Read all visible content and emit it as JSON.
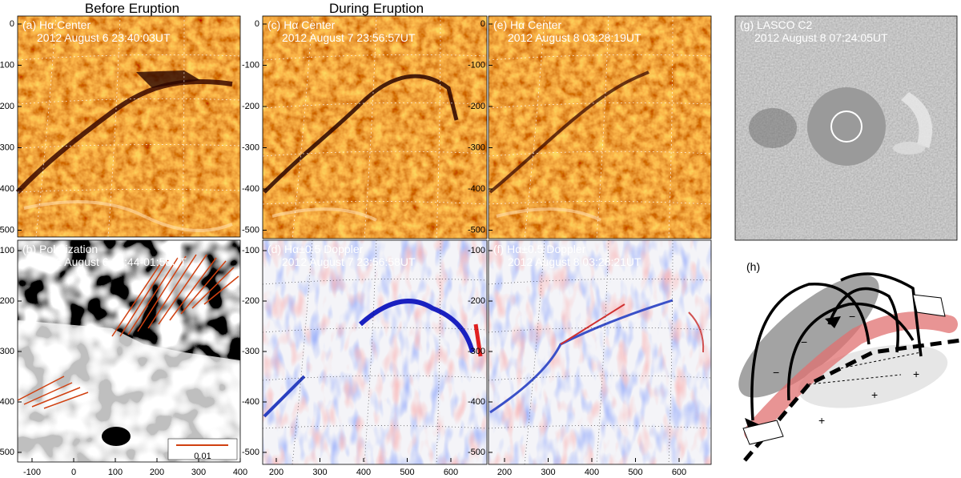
{
  "headers": [
    "Before Eruption",
    "During Eruption"
  ],
  "panels": [
    {
      "label": "(a) Hα Center",
      "time": "2012 August 6 23:40:03UT"
    },
    {
      "label": "(b) Polarization",
      "time": "2012 August 6 23:44-01:58UT"
    },
    {
      "label": "(c) Hα Center",
      "time": "2012 August 7 23:56:57UT"
    },
    {
      "label": "(d) Hα±0.5 Doppler",
      "time": "2012 August 7 23:56:58UT"
    },
    {
      "label": "(e) Hα Center",
      "time": "2012 August 8 03:28:19UT"
    },
    {
      "label": "(f) Hα±0.5 Doppler",
      "time": "2012 August 8 03:28:21UT"
    },
    {
      "label": "(g) LASCO C2",
      "time": "2012 August 8 07:24:05UT"
    }
  ],
  "scale_bar": "0.01",
  "lasco_stamp": [
    "C2",
    "2012/08/08 07:24:05"
  ],
  "axes": {
    "yticks_top": [
      0,
      -100,
      -200,
      -300,
      -400,
      -500
    ],
    "yticks_bottom": [
      -100,
      -200,
      -300,
      -400,
      -500
    ],
    "xticks_left": [
      -100,
      0,
      100,
      200,
      300,
      400
    ],
    "xticks_mid": [
      200,
      300,
      400,
      500,
      600
    ],
    "xticks_right": [
      200,
      300,
      400,
      500,
      600
    ]
  },
  "diagram": {
    "label": "(h)",
    "negatives": [
      "−",
      "−",
      "−"
    ],
    "positives": [
      "+",
      "+",
      "+"
    ]
  }
}
